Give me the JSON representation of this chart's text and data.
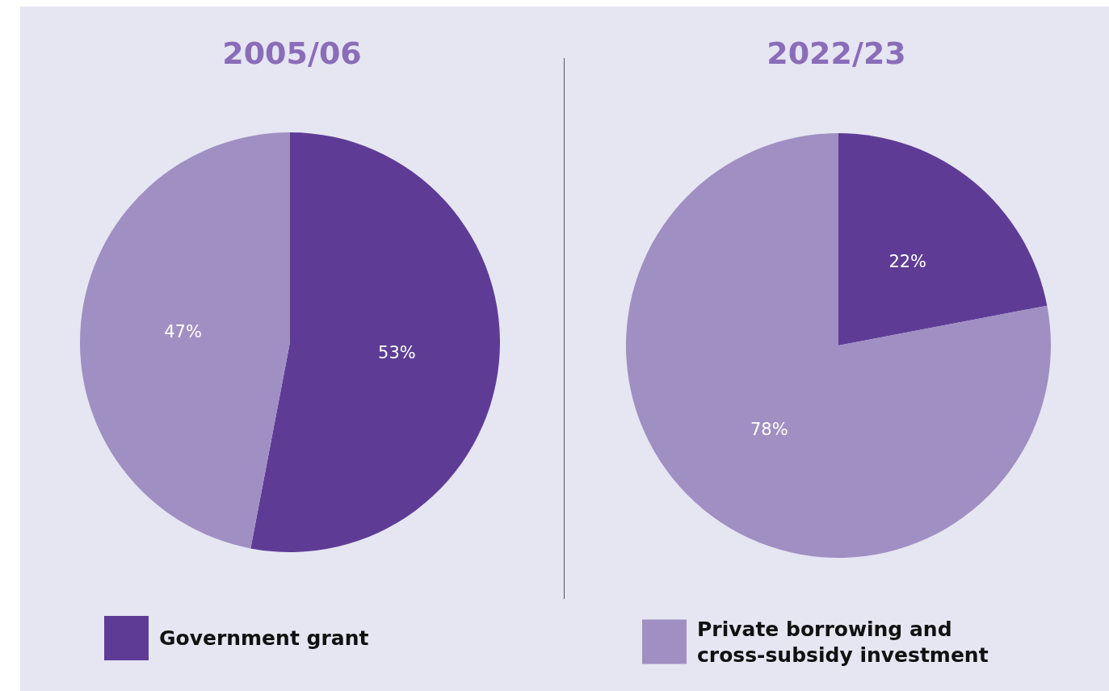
{
  "chart_data": [
    {
      "type": "pie",
      "title": "2005/06",
      "categories": [
        "Government grant",
        null
      ],
      "values": [
        53,
        47
      ],
      "value_labels": [
        "53%",
        "47%"
      ],
      "colors": [
        "#5e3c96",
        "#a08fc3"
      ],
      "legend": "bottom"
    },
    {
      "type": "pie",
      "title": "2022/23",
      "categories": [
        null,
        "Private borrowing and cross-subsidy investment"
      ],
      "values": [
        22,
        78
      ],
      "value_labels": [
        "22%",
        "78%"
      ],
      "colors": [
        "#5e3c96",
        "#a08fc3"
      ],
      "legend": "bottom"
    }
  ]
}
